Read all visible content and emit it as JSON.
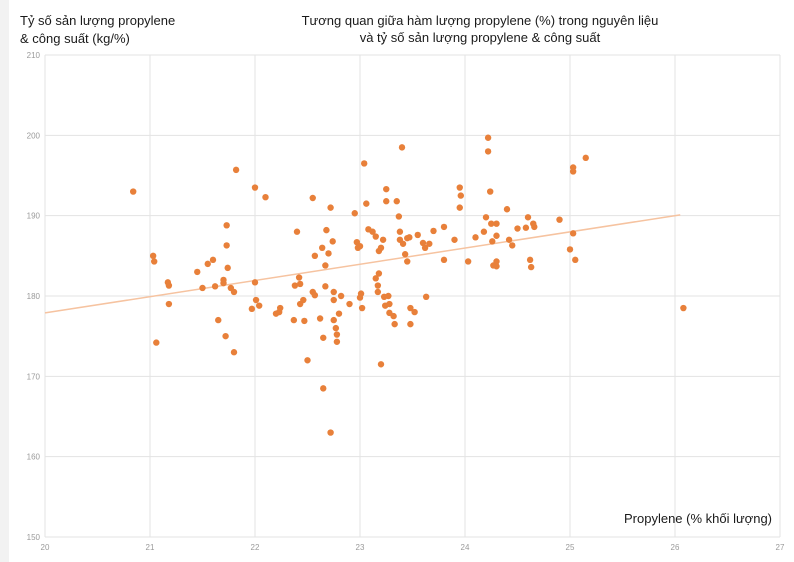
{
  "chart_data": {
    "type": "scatter",
    "title": "Tương quan giữa hàm lượng propylene (%) trong nguyên liệu\nvà tỷ số sản lượng propylene & công suất",
    "title_lines": [
      "Tương quan giữa hàm lượng propylene (%) trong nguyên liệu",
      "và tỷ số sản lượng propylene & công suất"
    ],
    "ylabel_lines": [
      "Tỷ số sản lượng propylene",
      "& công suất (kg/%)"
    ],
    "xlabel": "Propylene (% khối lượng)",
    "xlim": [
      20,
      27
    ],
    "ylim": [
      150,
      210
    ],
    "xticks": [
      "20",
      "21",
      "22",
      "23",
      "24",
      "25",
      "26",
      "27"
    ],
    "yticks": [
      "210",
      "200",
      "190",
      "180",
      "170",
      "160",
      "150"
    ],
    "grid": true,
    "colors": {
      "points": "#e8803a",
      "trendline": "#f6c3a0",
      "grid": "#e3e3e3"
    },
    "trendline": {
      "x": [
        20,
        26.05
      ],
      "y": [
        177.9,
        190.1
      ]
    },
    "points": [
      [
        20.84,
        193.0
      ],
      [
        21.03,
        185.0
      ],
      [
        21.04,
        184.3
      ],
      [
        21.06,
        174.2
      ],
      [
        21.17,
        181.7
      ],
      [
        21.18,
        181.3
      ],
      [
        21.18,
        179.0
      ],
      [
        21.45,
        183.0
      ],
      [
        21.5,
        181.0
      ],
      [
        21.55,
        184.0
      ],
      [
        21.6,
        184.5
      ],
      [
        21.62,
        181.2
      ],
      [
        21.7,
        181.6
      ],
      [
        21.7,
        182.0
      ],
      [
        21.65,
        177.0
      ],
      [
        21.72,
        175.0
      ],
      [
        21.73,
        188.8
      ],
      [
        21.73,
        186.3
      ],
      [
        21.74,
        183.5
      ],
      [
        21.77,
        181.0
      ],
      [
        21.8,
        180.5
      ],
      [
        21.8,
        173.0
      ],
      [
        21.82,
        195.7
      ],
      [
        21.97,
        178.4
      ],
      [
        22.0,
        181.7
      ],
      [
        22.01,
        179.5
      ],
      [
        22.0,
        193.5
      ],
      [
        22.04,
        178.8
      ],
      [
        22.1,
        192.3
      ],
      [
        22.2,
        177.8
      ],
      [
        22.24,
        178.5
      ],
      [
        22.23,
        178.0
      ],
      [
        22.37,
        177.0
      ],
      [
        22.38,
        181.3
      ],
      [
        22.4,
        188.0
      ],
      [
        22.42,
        182.3
      ],
      [
        22.43,
        181.5
      ],
      [
        22.43,
        179.0
      ],
      [
        22.46,
        179.5
      ],
      [
        22.47,
        176.9
      ],
      [
        22.5,
        172.0
      ],
      [
        22.55,
        180.5
      ],
      [
        22.55,
        192.2
      ],
      [
        22.57,
        185.0
      ],
      [
        22.57,
        180.1
      ],
      [
        22.62,
        177.2
      ],
      [
        22.64,
        186.0
      ],
      [
        22.67,
        181.2
      ],
      [
        22.67,
        183.8
      ],
      [
        22.65,
        174.8
      ],
      [
        22.68,
        188.2
      ],
      [
        22.7,
        185.3
      ],
      [
        22.72,
        191.0
      ],
      [
        22.74,
        186.8
      ],
      [
        22.75,
        180.5
      ],
      [
        22.75,
        179.5
      ],
      [
        22.75,
        177.0
      ],
      [
        22.77,
        176.0
      ],
      [
        22.78,
        175.2
      ],
      [
        22.78,
        174.3
      ],
      [
        22.8,
        177.8
      ],
      [
        22.82,
        180.0
      ],
      [
        22.72,
        163.0
      ],
      [
        22.65,
        168.5
      ],
      [
        22.9,
        179.0
      ],
      [
        22.95,
        190.3
      ],
      [
        22.97,
        186.7
      ],
      [
        22.98,
        186.0
      ],
      [
        23.0,
        186.2
      ],
      [
        23.0,
        179.8
      ],
      [
        23.01,
        180.3
      ],
      [
        23.02,
        178.5
      ],
      [
        23.04,
        196.5
      ],
      [
        23.06,
        191.5
      ],
      [
        23.08,
        188.3
      ],
      [
        23.12,
        188.0
      ],
      [
        23.15,
        187.4
      ],
      [
        23.15,
        182.2
      ],
      [
        23.17,
        181.3
      ],
      [
        23.17,
        180.5
      ],
      [
        23.18,
        182.8
      ],
      [
        23.18,
        185.6
      ],
      [
        23.2,
        171.5
      ],
      [
        23.2,
        186.0
      ],
      [
        23.22,
        187.0
      ],
      [
        23.23,
        179.9
      ],
      [
        23.24,
        178.8
      ],
      [
        23.25,
        193.3
      ],
      [
        23.25,
        191.8
      ],
      [
        23.27,
        180.0
      ],
      [
        23.28,
        179.0
      ],
      [
        23.28,
        177.9
      ],
      [
        23.32,
        177.5
      ],
      [
        23.33,
        176.5
      ],
      [
        23.35,
        191.8
      ],
      [
        23.37,
        189.9
      ],
      [
        23.38,
        188.0
      ],
      [
        23.38,
        187.0
      ],
      [
        23.4,
        198.5
      ],
      [
        23.41,
        186.5
      ],
      [
        23.43,
        185.2
      ],
      [
        23.45,
        184.3
      ],
      [
        23.45,
        187.2
      ],
      [
        23.47,
        187.3
      ],
      [
        23.48,
        178.5
      ],
      [
        23.48,
        176.5
      ],
      [
        23.52,
        178.0
      ],
      [
        23.55,
        187.6
      ],
      [
        23.6,
        186.6
      ],
      [
        23.62,
        186.0
      ],
      [
        23.63,
        179.9
      ],
      [
        23.66,
        186.5
      ],
      [
        23.7,
        188.1
      ],
      [
        23.8,
        184.5
      ],
      [
        23.8,
        188.6
      ],
      [
        23.9,
        187.0
      ],
      [
        23.95,
        193.5
      ],
      [
        23.96,
        192.5
      ],
      [
        23.95,
        191.0
      ],
      [
        24.03,
        184.3
      ],
      [
        24.1,
        187.3
      ],
      [
        24.18,
        188.0
      ],
      [
        24.2,
        189.8
      ],
      [
        24.22,
        199.7
      ],
      [
        24.22,
        198.0
      ],
      [
        24.24,
        193.0
      ],
      [
        24.25,
        189.0
      ],
      [
        24.26,
        186.8
      ],
      [
        24.27,
        183.8
      ],
      [
        24.3,
        187.5
      ],
      [
        24.3,
        189.0
      ],
      [
        24.3,
        183.7
      ],
      [
        24.3,
        184.3
      ],
      [
        24.4,
        190.8
      ],
      [
        24.42,
        187.0
      ],
      [
        24.45,
        186.3
      ],
      [
        24.5,
        188.4
      ],
      [
        24.58,
        188.5
      ],
      [
        24.6,
        189.8
      ],
      [
        24.62,
        184.5
      ],
      [
        24.63,
        183.6
      ],
      [
        24.65,
        189.0
      ],
      [
        24.66,
        188.6
      ],
      [
        24.9,
        189.5
      ],
      [
        25.0,
        185.8
      ],
      [
        25.03,
        195.5
      ],
      [
        25.03,
        196.0
      ],
      [
        25.03,
        187.8
      ],
      [
        25.05,
        184.5
      ],
      [
        25.15,
        197.2
      ],
      [
        26.08,
        178.5
      ]
    ]
  }
}
